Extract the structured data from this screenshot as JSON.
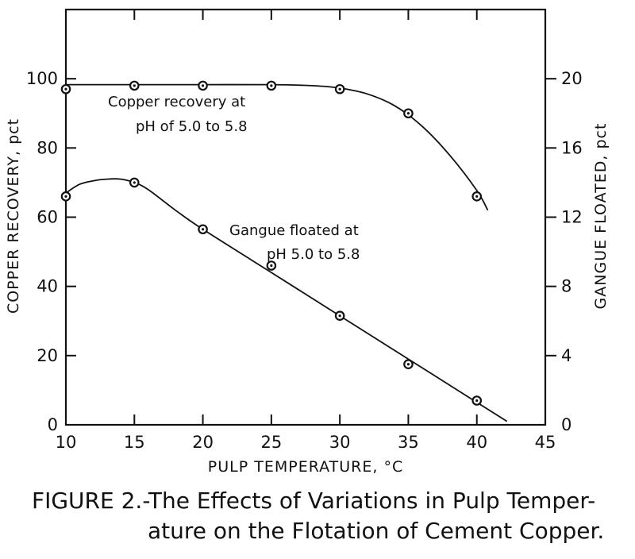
{
  "chart_data": {
    "type": "line",
    "xlabel": "PULP TEMPERATURE, °C",
    "ylabel_left": "COPPER RECOVERY, pct",
    "ylabel_right": "GANGUE FLOATED, pct",
    "xlim": [
      10,
      45
    ],
    "ylim_left": [
      0,
      120
    ],
    "ylim_right": [
      0,
      24
    ],
    "x_ticks": [
      10,
      15,
      20,
      25,
      30,
      35,
      40,
      45
    ],
    "y_left_ticks": [
      0,
      20,
      40,
      60,
      80,
      100
    ],
    "y_right_ticks": [
      0,
      4,
      8,
      12,
      16,
      20
    ],
    "grid": false,
    "series": [
      {
        "axis": "left",
        "x": [
          10,
          15,
          20,
          25,
          30,
          35,
          40
        ],
        "y": [
          97,
          98,
          98,
          98,
          97,
          90,
          66
        ],
        "curve": {
          "x": [
            10,
            12.5,
            15,
            20,
            25,
            28,
            30,
            32,
            34,
            36,
            38,
            40,
            40.8
          ],
          "y": [
            98.3,
            98.3,
            98.3,
            98.3,
            98.3,
            98.0,
            97.3,
            95.6,
            92.2,
            86.3,
            78.0,
            67.7,
            62.0
          ]
        },
        "annotation": [
          "Copper recovery at",
          "pH of 5.0 to 5.8"
        ]
      },
      {
        "axis": "right",
        "x": [
          10,
          15,
          20,
          25,
          30,
          35,
          40
        ],
        "y": [
          13.2,
          14.0,
          11.3,
          9.2,
          6.3,
          3.5,
          1.4
        ],
        "curve": {
          "x": [
            10,
            11,
            12,
            13,
            14,
            15,
            16,
            18,
            20,
            25,
            30,
            35,
            40,
            42.2
          ],
          "y": [
            13.4,
            13.9,
            14.1,
            14.2,
            14.2,
            14.0,
            13.6,
            12.4,
            11.3,
            8.8,
            6.3,
            3.8,
            1.3,
            0.2
          ]
        },
        "annotation": [
          "Gangue floated at",
          "pH 5.0 to 5.8"
        ]
      }
    ]
  },
  "caption": {
    "line1": "FIGURE 2.-The Effects of Variations in Pulp Temper-",
    "line2": "ature on the Flotation of Cement Copper."
  }
}
